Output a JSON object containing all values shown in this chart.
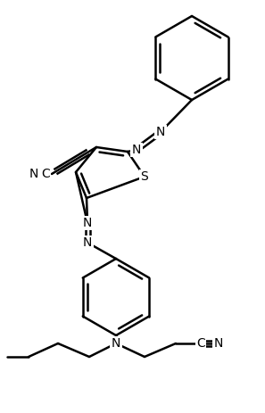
{
  "bg": "#ffffff",
  "lc": "#000000",
  "lw": 1.8,
  "figsize": [
    2.97,
    4.63
  ],
  "dpi": 100,
  "xlim": [
    0,
    297
  ],
  "ylim": [
    0,
    463
  ]
}
